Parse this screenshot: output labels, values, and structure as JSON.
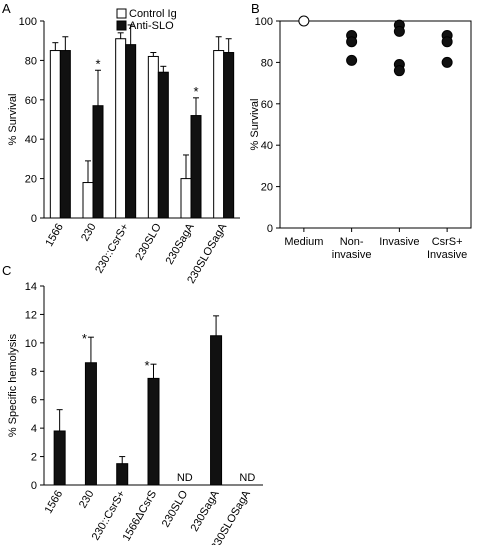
{
  "chart_data": [
    {
      "panel": "A",
      "type": "bar",
      "ylabel": "% Survival",
      "ylim": [
        0,
        100
      ],
      "yticks": [
        0,
        20,
        40,
        60,
        80,
        100
      ],
      "categories": [
        "1566",
        "230",
        "230::CsrS+",
        "230SLO",
        "230SagA",
        "230SLOSagA"
      ],
      "series": [
        {
          "name": "Control Ig",
          "fill": "#ffffff",
          "values": [
            85,
            18,
            91,
            82,
            20,
            85
          ],
          "errors": [
            4,
            11,
            3,
            2,
            12,
            7
          ]
        },
        {
          "name": "Anti-SLO",
          "fill": "#111111",
          "values": [
            85,
            57,
            88,
            74,
            52,
            84
          ],
          "errors": [
            7,
            18,
            10,
            3,
            9,
            7
          ]
        }
      ],
      "annotations": [
        {
          "text": "*",
          "category": "230",
          "series": "Anti-SLO"
        },
        {
          "text": "*",
          "category": "230SagA",
          "series": "Anti-SLO"
        }
      ],
      "legend": "top-right"
    },
    {
      "panel": "B",
      "type": "scatter",
      "ylabel": "% Survival",
      "ylim": [
        0,
        100
      ],
      "yticks": [
        0,
        20,
        40,
        60,
        80,
        100
      ],
      "categories": [
        "Medium",
        "Non-\ninvasive",
        "Invasive",
        "CsrS+\nInvasive"
      ],
      "points": [
        {
          "category": "Medium",
          "values": [
            100
          ],
          "filled": false
        },
        {
          "category": "Non-\ninvasive",
          "values": [
            93,
            90,
            81
          ],
          "filled": true
        },
        {
          "category": "Invasive",
          "values": [
            98,
            95,
            79,
            76
          ],
          "filled": true
        },
        {
          "category": "CsrS+\nInvasive",
          "values": [
            93,
            90,
            80
          ],
          "filled": true
        }
      ]
    },
    {
      "panel": "C",
      "type": "bar",
      "ylabel": "% Specific hemolysis",
      "ylim": [
        0,
        14
      ],
      "yticks": [
        0,
        2,
        4,
        6,
        8,
        10,
        12,
        14
      ],
      "categories": [
        "1566",
        "230",
        "230::CsrS+",
        "1566ΔCsrS",
        "230SLO",
        "230SagA",
        "230SLOSagA"
      ],
      "values": [
        3.8,
        8.6,
        1.5,
        7.5,
        null,
        10.5,
        null
      ],
      "errors": [
        1.5,
        1.8,
        0.5,
        1.0,
        null,
        1.4,
        null
      ],
      "bar_fill": "#111111",
      "labels": [
        "",
        "",
        "",
        "",
        "ND",
        "",
        "ND"
      ],
      "annotations": [
        {
          "text": "*",
          "category": "230"
        },
        {
          "text": "*",
          "category": "1566ΔCsrS"
        }
      ]
    }
  ],
  "panel_letters": [
    "A",
    "B",
    "C"
  ]
}
